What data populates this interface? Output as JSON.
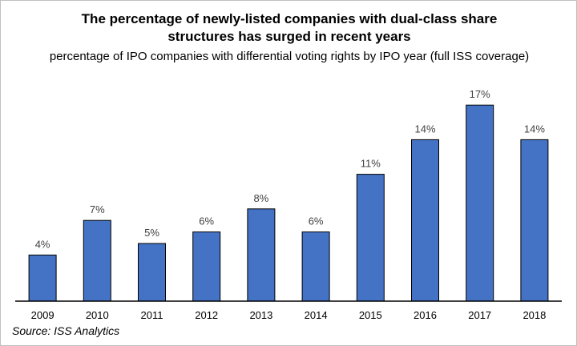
{
  "chart_data": {
    "type": "bar",
    "title": "The percentage of newly-listed companies with dual-class share structures has surged in recent years",
    "subtitle": "percentage of IPO companies with differential voting rights by IPO year (full ISS coverage)",
    "categories": [
      "2009",
      "2010",
      "2011",
      "2012",
      "2013",
      "2014",
      "2015",
      "2016",
      "2017",
      "2018"
    ],
    "values": [
      4,
      7,
      5,
      6,
      8,
      6,
      11,
      14,
      17,
      14
    ],
    "data_labels": [
      "4%",
      "7%",
      "5%",
      "6%",
      "8%",
      "6%",
      "11%",
      "14%",
      "17%",
      "14%"
    ],
    "ylim": [
      0,
      17.5
    ],
    "xlabel": "",
    "ylabel": "",
    "grid": false,
    "legend": "none",
    "bar_color": "#4472c4",
    "bar_edge_color": "#000000"
  },
  "source": "Source: ISS Analytics"
}
